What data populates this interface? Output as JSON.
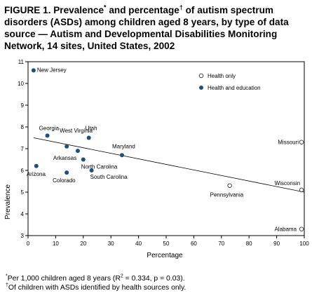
{
  "header": {
    "title_part1": "FIGURE 1. Prevalence",
    "title_mark1": "*",
    "title_part2": " and percentage",
    "title_mark2": "†",
    "title_part3": " of autism spectrum disorders (ASDs) among children aged 8 years, by type of data source — Autism and Developmental Disabilities Monitoring Network, 14 sites, United States, 2002"
  },
  "footnotes": {
    "note1_mark": "*",
    "note1_part1": "Per 1,000 children aged 8 years (R",
    "note1_sup": "2",
    "note1_part2": " = 0.334, p = 0.03).",
    "note2_mark": "†",
    "note2_text": "Of children with ASDs identified by health sources only."
  },
  "chart_data": {
    "type": "scatter",
    "xlabel": "Percentage",
    "ylabel": "Prevalence",
    "xlim": [
      0,
      100
    ],
    "ylim": [
      3,
      11
    ],
    "xticks": [
      "0",
      "10",
      "20",
      "30",
      "40",
      "50",
      "60",
      "70",
      "80",
      "90",
      "100"
    ],
    "yticks": [
      "3",
      "4",
      "5",
      "6",
      "7",
      "8",
      "9",
      "10",
      "11"
    ],
    "grid": false,
    "legend_position": "top-right",
    "legend": [
      {
        "key": "health_only",
        "label": "Health only",
        "marker": "open-circle"
      },
      {
        "key": "health_education",
        "label": "Health and education",
        "marker": "filled-circle"
      }
    ],
    "colors": {
      "filled": "#1f4e79",
      "open_stroke": "#333333",
      "axis": "#000000",
      "line": "#000000"
    },
    "points": [
      {
        "label": "New Jersey",
        "x": 2,
        "y": 10.6,
        "group": "health_education"
      },
      {
        "label": "Georgia",
        "x": 7,
        "y": 7.6,
        "group": "health_education"
      },
      {
        "label": "Utah",
        "x": 22,
        "y": 7.5,
        "group": "health_education"
      },
      {
        "label": "West Virginia",
        "x": 14,
        "y": 7.1,
        "group": "health_education"
      },
      {
        "label": "Maryland",
        "x": 34,
        "y": 6.7,
        "group": "health_education"
      },
      {
        "label": "Arkansas",
        "x": 18,
        "y": 6.9,
        "group": "health_education"
      },
      {
        "label": "North Carolina",
        "x": 20,
        "y": 6.5,
        "group": "health_education"
      },
      {
        "label": "Arizona",
        "x": 3,
        "y": 6.2,
        "group": "health_education"
      },
      {
        "label": "Colorado",
        "x": 14,
        "y": 5.9,
        "group": "health_education"
      },
      {
        "label": "South Carolina",
        "x": 23,
        "y": 6.0,
        "group": "health_education"
      },
      {
        "label": "Missouri",
        "x": 99,
        "y": 7.3,
        "group": "health_only"
      },
      {
        "label": "Pennsylvania",
        "x": 73,
        "y": 5.3,
        "group": "health_only"
      },
      {
        "label": "Wisconsin",
        "x": 99,
        "y": 5.1,
        "group": "health_only"
      },
      {
        "label": "Alabama",
        "x": 99,
        "y": 3.3,
        "group": "health_only"
      }
    ],
    "trendline": {
      "x": [
        2,
        100
      ],
      "y": [
        7.5,
        5.0
      ]
    }
  }
}
